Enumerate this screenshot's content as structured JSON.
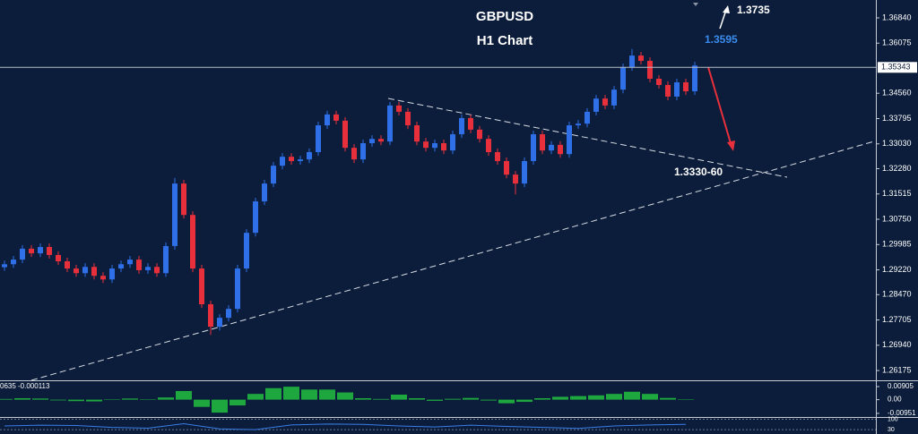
{
  "chart_data": {
    "type": "candlestick",
    "title": "GBPUSD",
    "subtitle": "H1 Chart",
    "annotations": [
      "1.3735",
      "1.3595",
      "1.3330-60"
    ],
    "up_color": "#2f6fe8",
    "down_color": "#e8303c",
    "open": [
      1.293,
      1.2939,
      1.2953,
      1.2986,
      1.2972,
      1.2991,
      1.2967,
      1.2948,
      1.2926,
      1.2912,
      1.2931,
      1.2904,
      1.2893,
      1.2926,
      1.2939,
      1.2953,
      1.2921,
      1.2931,
      1.2912,
      1.2994,
      1.3183,
      1.3088,
      1.2926,
      1.2818,
      1.275,
      1.2777,
      1.2804,
      1.2926,
      1.3034,
      1.3129,
      1.3183,
      1.3237,
      1.3264,
      1.3251,
      1.3256,
      1.3278,
      1.3359,
      1.3392,
      1.3373,
      1.3291,
      1.3256,
      1.3305,
      1.3318,
      1.331,
      1.3419,
      1.34,
      1.3359,
      1.331,
      1.3291,
      1.3305,
      1.3283,
      1.3332,
      1.3381,
      1.3346,
      1.3318,
      1.3278,
      1.3251,
      1.321,
      1.3183,
      1.3251,
      1.3332,
      1.3283,
      1.33,
      1.3272,
      1.3359,
      1.3364,
      1.34,
      1.344,
      1.3419,
      1.3467,
      1.3535,
      1.357,
      1.3554,
      1.35,
      1.3481,
      1.3446,
      1.3489,
      1.3462
    ],
    "high": [
      1.295,
      1.2964,
      1.2997,
      1.2997,
      1.3002,
      1.3002,
      1.2978,
      1.2959,
      1.2937,
      1.2942,
      1.2942,
      1.2915,
      1.2937,
      1.295,
      1.2964,
      1.2964,
      1.2942,
      1.2942,
      1.3005,
      1.32,
      1.3194,
      1.3099,
      1.2937,
      1.2829,
      1.2788,
      1.2815,
      1.2937,
      1.3045,
      1.314,
      1.3194,
      1.3248,
      1.3275,
      1.3275,
      1.3267,
      1.3289,
      1.337,
      1.3403,
      1.3403,
      1.3384,
      1.3302,
      1.3316,
      1.3329,
      1.3329,
      1.343,
      1.343,
      1.3411,
      1.337,
      1.3321,
      1.3316,
      1.3316,
      1.3343,
      1.3392,
      1.3392,
      1.3357,
      1.3329,
      1.3289,
      1.3262,
      1.3221,
      1.3262,
      1.3343,
      1.3343,
      1.3311,
      1.3311,
      1.337,
      1.3375,
      1.3411,
      1.3451,
      1.3451,
      1.3478,
      1.3546,
      1.359,
      1.3581,
      1.3565,
      1.3511,
      1.3492,
      1.35,
      1.35,
      1.3551
    ],
    "low": [
      1.2919,
      1.2928,
      1.2942,
      1.2961,
      1.2961,
      1.2956,
      1.2937,
      1.2915,
      1.2901,
      1.2901,
      1.2893,
      1.2882,
      1.2882,
      1.2915,
      1.2928,
      1.291,
      1.291,
      1.2901,
      1.2901,
      1.2983,
      1.3077,
      1.2915,
      1.2807,
      1.2725,
      1.2739,
      1.2766,
      1.2793,
      1.2915,
      1.3023,
      1.3118,
      1.3172,
      1.3226,
      1.324,
      1.324,
      1.3245,
      1.3267,
      1.3348,
      1.3362,
      1.328,
      1.3245,
      1.3245,
      1.3294,
      1.3299,
      1.3299,
      1.3389,
      1.3348,
      1.3299,
      1.328,
      1.328,
      1.3272,
      1.3272,
      1.3321,
      1.3335,
      1.3307,
      1.3267,
      1.324,
      1.3199,
      1.315,
      1.3172,
      1.324,
      1.3272,
      1.3272,
      1.3261,
      1.3261,
      1.3348,
      1.3353,
      1.3389,
      1.3408,
      1.3408,
      1.3456,
      1.3524,
      1.3543,
      1.3489,
      1.347,
      1.3435,
      1.3435,
      1.3451,
      1.3451
    ],
    "close": [
      1.2939,
      1.2953,
      1.2986,
      1.2972,
      1.2991,
      1.2967,
      1.2948,
      1.2926,
      1.2912,
      1.2931,
      1.2904,
      1.2893,
      1.2926,
      1.2939,
      1.2953,
      1.2921,
      1.2931,
      1.2912,
      1.2994,
      1.3183,
      1.3088,
      1.2926,
      1.2818,
      1.275,
      1.2777,
      1.2804,
      1.2926,
      1.3034,
      1.3129,
      1.3183,
      1.3237,
      1.3264,
      1.3251,
      1.3256,
      1.3278,
      1.3359,
      1.3392,
      1.3373,
      1.3291,
      1.3256,
      1.3305,
      1.3318,
      1.331,
      1.3419,
      1.34,
      1.3359,
      1.331,
      1.3291,
      1.3305,
      1.3283,
      1.3332,
      1.3381,
      1.3346,
      1.3318,
      1.3278,
      1.3251,
      1.321,
      1.3183,
      1.3251,
      1.3332,
      1.3283,
      1.33,
      1.3272,
      1.3359,
      1.3364,
      1.34,
      1.344,
      1.3419,
      1.3467,
      1.3535,
      1.357,
      1.3554,
      1.35,
      1.3481,
      1.3446,
      1.3489,
      1.3462,
      1.354
    ],
    "ylim": [
      1.2588,
      1.3738
    ],
    "yticks": [
      {
        "value": 1.3684,
        "label": "1.36840"
      },
      {
        "value": 1.36075,
        "label": "1.36075"
      },
      {
        "value": 1.3456,
        "label": "1.34560"
      },
      {
        "value": 1.33795,
        "label": "1.33795"
      },
      {
        "value": 1.3303,
        "label": "1.33030"
      },
      {
        "value": 1.3228,
        "label": "1.32280"
      },
      {
        "value": 1.31515,
        "label": "1.31515"
      },
      {
        "value": 1.3075,
        "label": "1.30750"
      },
      {
        "value": 1.29985,
        "label": "1.29985"
      },
      {
        "value": 1.2922,
        "label": "1.29220"
      },
      {
        "value": 1.2847,
        "label": "1.28470"
      },
      {
        "value": 1.27705,
        "label": "1.27705"
      },
      {
        "value": 1.2694,
        "label": "1.26940"
      },
      {
        "value": 1.26175,
        "label": "1.26175"
      }
    ],
    "current_price": 1.35343,
    "indicators": [
      {
        "type": "bar",
        "label": "0635 -0.000113",
        "color": "#22c040",
        "values": [
          0.0005,
          0.001,
          0.0008,
          -0.0005,
          -0.001,
          -0.0012,
          0.0003,
          0.0008,
          0.0002,
          0.0015,
          0.006,
          -0.005,
          -0.009,
          -0.004,
          0.004,
          0.008,
          0.009,
          0.007,
          0.007,
          0.005,
          0.001,
          0.0005,
          0.0035,
          0.001,
          -0.0008,
          0.0006,
          0.0012,
          -0.0006,
          -0.0025,
          -0.0015,
          0.001,
          0.002,
          0.0025,
          0.003,
          0.004,
          0.0055,
          0.004,
          0.0012,
          0.0002
        ],
        "ylim": [
          -0.0114,
          0.0128
        ],
        "yticks": [
          0.00905,
          {
            "value": 0,
            "label": "0.00"
          },
          -0.00951
        ]
      },
      {
        "type": "line",
        "color": "#3a7ee8",
        "values": [
          55,
          60,
          58,
          45,
          40,
          70,
          35,
          30,
          62,
          68,
          66,
          55,
          48,
          60,
          52,
          45,
          38,
          55,
          62,
          66
        ],
        "ylim": [
          0,
          110
        ],
        "yticks": [
          100,
          30
        ]
      }
    ]
  }
}
